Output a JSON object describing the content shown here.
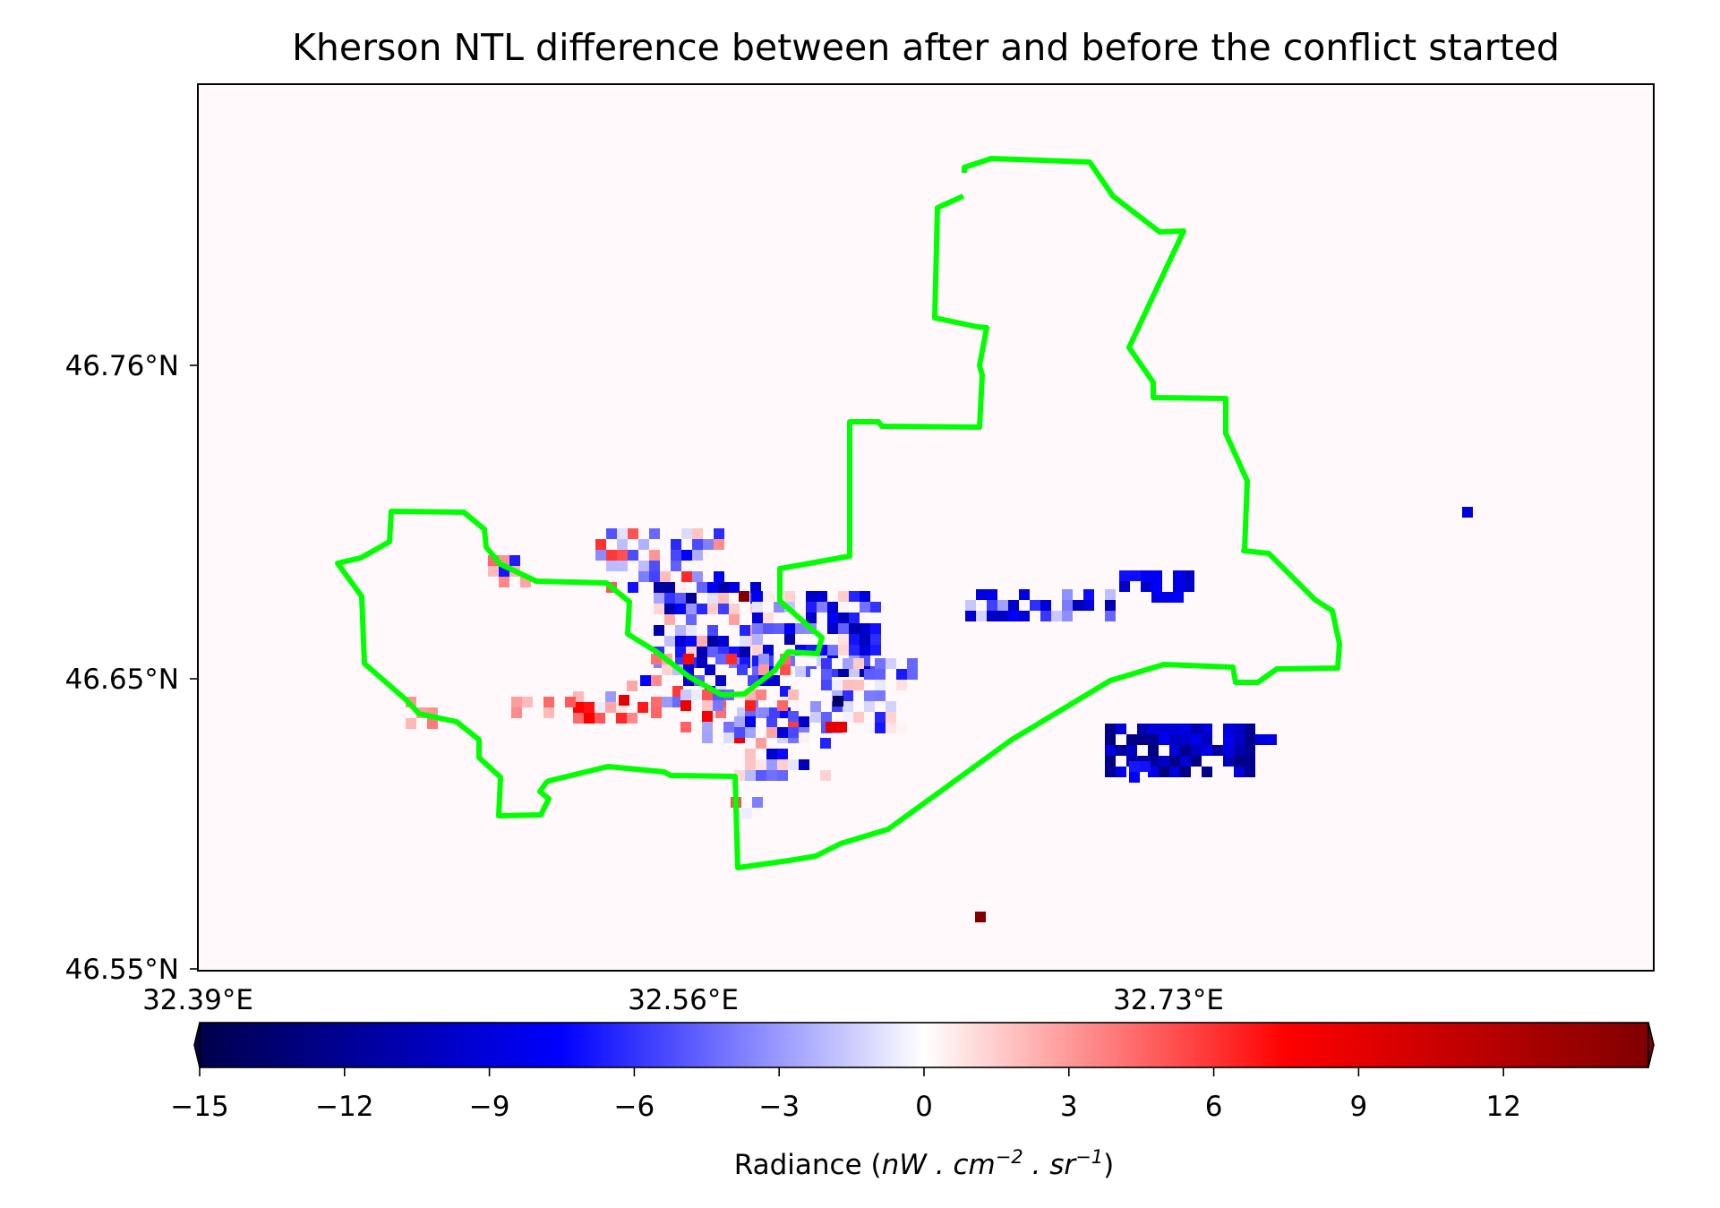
{
  "title": "Kherson NTL difference between after and before the conflict started",
  "map": {
    "y_ticks": [
      "46.76°N",
      "46.65°N",
      "46.55°N"
    ],
    "x_ticks": [
      "32.39°E",
      "32.56°E",
      "32.73°E"
    ],
    "boundary_color": "#00ff00",
    "background_color": "#fff9fb",
    "lon_range": [
      32.39,
      32.9
    ],
    "lat_range": [
      46.55,
      46.85
    ]
  },
  "colorbar": {
    "ticks": [
      "−15",
      "−12",
      "−9",
      "−6",
      "−3",
      "0",
      "3",
      "6",
      "9",
      "12"
    ],
    "tick_values": [
      -15,
      -12,
      -9,
      -6,
      -3,
      0,
      3,
      6,
      9,
      12
    ],
    "range": [
      -15,
      15
    ],
    "colormap": "seismic",
    "extend": "both",
    "label_prefix": "Radiance (",
    "label_unit": "nW . cm",
    "label_exp1": "−2",
    "label_mid": " . sr",
    "label_exp2": "−1",
    "label_suffix": ")"
  }
}
